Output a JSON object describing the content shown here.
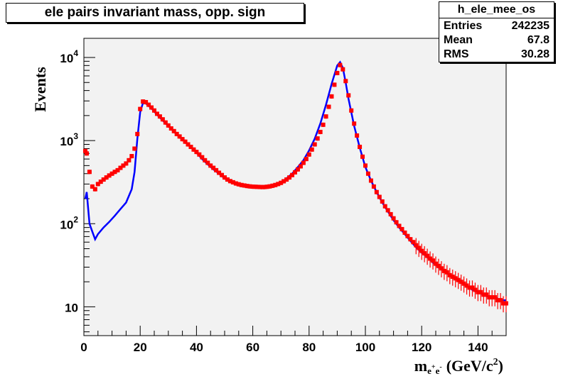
{
  "title": "ele pairs invariant mass, opp. sign",
  "stats": {
    "name": "h_ele_mee_os",
    "rows": [
      {
        "label": "Entries",
        "value": "242235"
      },
      {
        "label": "Mean",
        "value": "67.8"
      },
      {
        "label": "RMS",
        "value": "30.28"
      }
    ]
  },
  "chart_data": {
    "type": "line",
    "title": "ele pairs invariant mass, opp. sign",
    "ylabel": "Events",
    "xlabel": {
      "main": "m",
      "sub_e1": "e",
      "sup1": "+",
      "sub_e2": "e",
      "sup2": "-",
      "units": "(GeV/c",
      "units_sup": "2",
      "units_close": ")"
    },
    "xlim": [
      0,
      150
    ],
    "ylim": [
      4.5,
      17000
    ],
    "y_scale": "log",
    "x_ticks": [
      0,
      20,
      40,
      60,
      80,
      100,
      120,
      140
    ],
    "y_ticks": [
      {
        "value": 10,
        "label": "10"
      },
      {
        "value": 100,
        "base": "10",
        "exp": "2"
      },
      {
        "value": 1000,
        "base": "10",
        "exp": "3"
      },
      {
        "value": 10000,
        "base": "10",
        "exp": "4"
      }
    ],
    "background": "#f2f2f2",
    "series": [
      {
        "color": "#0000ff",
        "style": "line",
        "points": [
          [
            0.5,
            200
          ],
          [
            1,
            240
          ],
          [
            2,
            100
          ],
          [
            3,
            80
          ],
          [
            4,
            65
          ],
          [
            5,
            75
          ],
          [
            7,
            90
          ],
          [
            9,
            105
          ],
          [
            11,
            125
          ],
          [
            13,
            150
          ],
          [
            15,
            180
          ],
          [
            17,
            260
          ],
          [
            18,
            420
          ],
          [
            19,
            1050
          ],
          [
            20,
            2200
          ],
          [
            21,
            2850
          ],
          [
            22,
            2800
          ],
          [
            24,
            2450
          ],
          [
            26,
            2050
          ],
          [
            28,
            1750
          ],
          [
            30,
            1500
          ],
          [
            32,
            1280
          ],
          [
            34,
            1100
          ],
          [
            36,
            960
          ],
          [
            38,
            840
          ],
          [
            40,
            720
          ],
          [
            42,
            600
          ],
          [
            44,
            520
          ],
          [
            46,
            450
          ],
          [
            48,
            400
          ],
          [
            50,
            350
          ],
          [
            52,
            320
          ],
          [
            54,
            300
          ],
          [
            56,
            290
          ],
          [
            58,
            280
          ],
          [
            60,
            275
          ],
          [
            62,
            275
          ],
          [
            64,
            270
          ],
          [
            66,
            275
          ],
          [
            68,
            285
          ],
          [
            70,
            310
          ],
          [
            72,
            350
          ],
          [
            74,
            400
          ],
          [
            76,
            480
          ],
          [
            78,
            580
          ],
          [
            80,
            760
          ],
          [
            82,
            1050
          ],
          [
            84,
            1600
          ],
          [
            86,
            2700
          ],
          [
            88,
            4800
          ],
          [
            90,
            8000
          ],
          [
            91,
            8800
          ],
          [
            92,
            7500
          ],
          [
            93,
            5000
          ],
          [
            94,
            3200
          ],
          [
            96,
            1500
          ],
          [
            98,
            820
          ],
          [
            100,
            480
          ],
          [
            102,
            330
          ],
          [
            104,
            240
          ],
          [
            106,
            180
          ],
          [
            108,
            140
          ],
          [
            110,
            110
          ],
          [
            112,
            90
          ],
          [
            114,
            75
          ],
          [
            116,
            62
          ],
          [
            118,
            52
          ],
          [
            120,
            45
          ],
          [
            122,
            40
          ],
          [
            124,
            34
          ],
          [
            126,
            30
          ],
          [
            128,
            27
          ],
          [
            130,
            24
          ],
          [
            132,
            22
          ],
          [
            134,
            20
          ],
          [
            136,
            18
          ],
          [
            138,
            16
          ],
          [
            140,
            15
          ],
          [
            142,
            14
          ],
          [
            144,
            13
          ],
          [
            146,
            13
          ],
          [
            148,
            12
          ],
          [
            150,
            12
          ]
        ]
      },
      {
        "color": "#ff0000",
        "style": "markers",
        "points": [
          [
            0.5,
            750
          ],
          [
            1,
            700
          ],
          [
            2,
            420
          ],
          [
            3,
            280
          ],
          [
            4,
            260
          ],
          [
            5,
            300
          ],
          [
            6,
            320
          ],
          [
            7,
            340
          ],
          [
            8,
            360
          ],
          [
            9,
            380
          ],
          [
            10,
            400
          ],
          [
            11,
            420
          ],
          [
            12,
            440
          ],
          [
            13,
            470
          ],
          [
            14,
            500
          ],
          [
            15,
            530
          ],
          [
            16,
            580
          ],
          [
            17,
            650
          ],
          [
            18,
            800
          ],
          [
            19,
            1200
          ],
          [
            20,
            2400
          ],
          [
            21,
            2950
          ],
          [
            22,
            2900
          ],
          [
            23,
            2700
          ],
          [
            24,
            2500
          ],
          [
            25,
            2300
          ],
          [
            26,
            2100
          ],
          [
            27,
            1950
          ],
          [
            28,
            1800
          ],
          [
            29,
            1650
          ],
          [
            30,
            1520
          ],
          [
            31,
            1400
          ],
          [
            32,
            1300
          ],
          [
            33,
            1200
          ],
          [
            34,
            1120
          ],
          [
            35,
            1040
          ],
          [
            36,
            970
          ],
          [
            37,
            900
          ],
          [
            38,
            840
          ],
          [
            39,
            780
          ],
          [
            40,
            730
          ],
          [
            41,
            680
          ],
          [
            42,
            630
          ],
          [
            43,
            580
          ],
          [
            44,
            540
          ],
          [
            45,
            500
          ],
          [
            46,
            470
          ],
          [
            47,
            440
          ],
          [
            48,
            410
          ],
          [
            49,
            385
          ],
          [
            50,
            360
          ],
          [
            51,
            340
          ],
          [
            52,
            325
          ],
          [
            53,
            315
          ],
          [
            54,
            305
          ],
          [
            55,
            298
          ],
          [
            56,
            292
          ],
          [
            57,
            288
          ],
          [
            58,
            284
          ],
          [
            59,
            281
          ],
          [
            60,
            279
          ],
          [
            61,
            278
          ],
          [
            62,
            277
          ],
          [
            63,
            276
          ],
          [
            64,
            276
          ],
          [
            65,
            278
          ],
          [
            66,
            281
          ],
          [
            67,
            286
          ],
          [
            68,
            292
          ],
          [
            69,
            300
          ],
          [
            70,
            310
          ],
          [
            71,
            324
          ],
          [
            72,
            340
          ],
          [
            73,
            360
          ],
          [
            74,
            385
          ],
          [
            75,
            415
          ],
          [
            76,
            450
          ],
          [
            77,
            490
          ],
          [
            78,
            540
          ],
          [
            79,
            600
          ],
          [
            80,
            680
          ],
          [
            81,
            780
          ],
          [
            82,
            900
          ],
          [
            83,
            1060
          ],
          [
            84,
            1270
          ],
          [
            85,
            1550
          ],
          [
            86,
            1950
          ],
          [
            87,
            2550
          ],
          [
            88,
            3400
          ],
          [
            89,
            4700
          ],
          [
            90,
            6500
          ],
          [
            91,
            8100
          ],
          [
            92,
            7200
          ],
          [
            93,
            5200
          ],
          [
            94,
            3500
          ],
          [
            95,
            2300
          ],
          [
            96,
            1600
          ],
          [
            97,
            1150
          ],
          [
            98,
            840
          ],
          [
            99,
            640
          ],
          [
            100,
            500
          ],
          [
            101,
            400
          ],
          [
            102,
            330
          ],
          [
            103,
            280
          ],
          [
            104,
            240
          ],
          [
            105,
            210
          ],
          [
            106,
            185
          ],
          [
            107,
            162
          ],
          [
            108,
            145
          ],
          [
            109,
            130
          ],
          [
            110,
            116
          ],
          [
            111,
            104
          ],
          [
            112,
            94
          ],
          [
            113,
            86
          ],
          [
            114,
            78
          ],
          [
            115,
            71
          ],
          [
            116,
            65
          ],
          [
            117,
            60
          ],
          [
            118,
            55
          ],
          [
            119,
            51
          ],
          [
            120,
            47
          ],
          [
            121,
            44
          ],
          [
            122,
            41
          ],
          [
            123,
            38
          ],
          [
            124,
            36
          ],
          [
            125,
            33
          ],
          [
            126,
            31
          ],
          [
            127,
            29
          ],
          [
            128,
            27
          ],
          [
            129,
            26
          ],
          [
            130,
            24
          ],
          [
            131,
            23
          ],
          [
            132,
            22
          ],
          [
            133,
            21
          ],
          [
            134,
            20
          ],
          [
            135,
            19
          ],
          [
            136,
            18
          ],
          [
            137,
            17
          ],
          [
            138,
            17
          ],
          [
            139,
            16
          ],
          [
            140,
            15
          ],
          [
            141,
            15
          ],
          [
            142,
            14
          ],
          [
            143,
            14
          ],
          [
            144,
            13
          ],
          [
            145,
            13
          ],
          [
            146,
            13
          ],
          [
            147,
            12
          ],
          [
            148,
            12
          ],
          [
            149,
            11
          ],
          [
            150,
            11
          ]
        ]
      }
    ]
  }
}
